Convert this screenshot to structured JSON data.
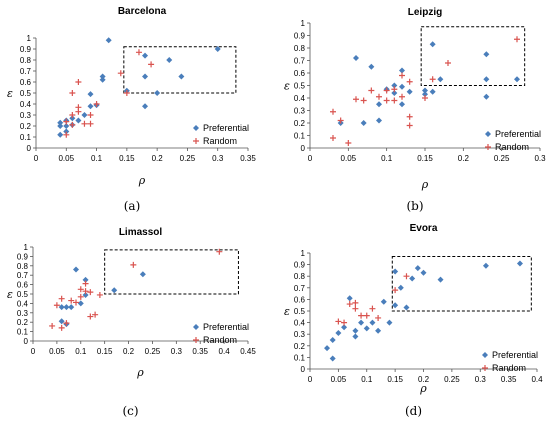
{
  "chart_data": [
    {
      "type": "scatter",
      "title": "Barcelona",
      "xlabel": "ρ",
      "ylabel": "ε",
      "caption": "(a)",
      "xlim": [
        0,
        0.35
      ],
      "xticks": [
        "0",
        "0.05",
        "0.1",
        "0.15",
        "0.2",
        "0.25",
        "0.3",
        "0.35"
      ],
      "ylim": [
        0,
        1
      ],
      "yticks": [
        "0",
        "0.1",
        "0.2",
        "0.3",
        "0.4",
        "0.5",
        "0.6",
        "0.7",
        "0.8",
        "0.9",
        "1"
      ],
      "box": [
        0.145,
        0.5,
        0.33,
        0.92
      ],
      "legend_position": "bottom-right",
      "colors": {
        "Preferential": "#4a7ebb",
        "Random": "#d9534f"
      },
      "series": [
        {
          "name": "Preferential",
          "marker": "diamond",
          "points": [
            [
              0.04,
              0.12
            ],
            [
              0.04,
              0.2
            ],
            [
              0.04,
              0.23
            ],
            [
              0.05,
              0.15
            ],
            [
              0.05,
              0.2
            ],
            [
              0.05,
              0.25
            ],
            [
              0.06,
              0.21
            ],
            [
              0.06,
              0.27
            ],
            [
              0.07,
              0.25
            ],
            [
              0.08,
              0.3
            ],
            [
              0.09,
              0.38
            ],
            [
              0.09,
              0.49
            ],
            [
              0.1,
              0.39
            ],
            [
              0.11,
              0.62
            ],
            [
              0.11,
              0.65
            ],
            [
              0.12,
              0.98
            ],
            [
              0.15,
              0.52
            ],
            [
              0.18,
              0.38
            ],
            [
              0.18,
              0.65
            ],
            [
              0.18,
              0.84
            ],
            [
              0.2,
              0.5
            ],
            [
              0.22,
              0.8
            ],
            [
              0.24,
              0.65
            ],
            [
              0.3,
              0.9
            ]
          ]
        },
        {
          "name": "Random",
          "marker": "plus",
          "points": [
            [
              0.05,
              0.12
            ],
            [
              0.05,
              0.24
            ],
            [
              0.06,
              0.21
            ],
            [
              0.06,
              0.3
            ],
            [
              0.06,
              0.5
            ],
            [
              0.07,
              0.33
            ],
            [
              0.07,
              0.37
            ],
            [
              0.07,
              0.6
            ],
            [
              0.08,
              0.22
            ],
            [
              0.09,
              0.22
            ],
            [
              0.09,
              0.3
            ],
            [
              0.1,
              0.4
            ],
            [
              0.14,
              0.68
            ],
            [
              0.15,
              0.5
            ],
            [
              0.17,
              0.87
            ],
            [
              0.19,
              0.76
            ]
          ]
        }
      ]
    },
    {
      "type": "scatter",
      "title": "Leipzig",
      "xlabel": "ρ",
      "ylabel": "ε",
      "caption": "(b)",
      "xlim": [
        0,
        0.3
      ],
      "xticks": [
        "0",
        "0.05",
        "0.1",
        "0.15",
        "0.2",
        "0.25",
        "0.3"
      ],
      "ylim": [
        0,
        1
      ],
      "yticks": [
        "0",
        "0.1",
        "0.2",
        "0.3",
        "0.4",
        "0.5",
        "0.6",
        "0.7",
        "0.8",
        "0.9",
        "1"
      ],
      "box": [
        0.145,
        0.5,
        0.28,
        0.97
      ],
      "legend_position": "bottom-right",
      "colors": {
        "Preferential": "#4a7ebb",
        "Random": "#d9534f"
      },
      "series": [
        {
          "name": "Preferential",
          "marker": "diamond",
          "points": [
            [
              0.04,
              0.2
            ],
            [
              0.06,
              0.72
            ],
            [
              0.07,
              0.2
            ],
            [
              0.08,
              0.65
            ],
            [
              0.09,
              0.22
            ],
            [
              0.09,
              0.35
            ],
            [
              0.1,
              0.47
            ],
            [
              0.11,
              0.44
            ],
            [
              0.11,
              0.5
            ],
            [
              0.12,
              0.35
            ],
            [
              0.12,
              0.49
            ],
            [
              0.12,
              0.62
            ],
            [
              0.13,
              0.45
            ],
            [
              0.15,
              0.43
            ],
            [
              0.15,
              0.46
            ],
            [
              0.16,
              0.83
            ],
            [
              0.16,
              0.45
            ],
            [
              0.17,
              0.55
            ],
            [
              0.23,
              0.41
            ],
            [
              0.23,
              0.55
            ],
            [
              0.23,
              0.75
            ],
            [
              0.27,
              0.55
            ]
          ]
        },
        {
          "name": "Random",
          "marker": "plus",
          "points": [
            [
              0.03,
              0.08
            ],
            [
              0.03,
              0.29
            ],
            [
              0.04,
              0.22
            ],
            [
              0.05,
              0.04
            ],
            [
              0.06,
              0.39
            ],
            [
              0.07,
              0.38
            ],
            [
              0.08,
              0.46
            ],
            [
              0.09,
              0.41
            ],
            [
              0.1,
              0.38
            ],
            [
              0.1,
              0.46
            ],
            [
              0.11,
              0.38
            ],
            [
              0.11,
              0.47
            ],
            [
              0.12,
              0.41
            ],
            [
              0.12,
              0.58
            ],
            [
              0.13,
              0.18
            ],
            [
              0.13,
              0.25
            ],
            [
              0.13,
              0.53
            ],
            [
              0.15,
              0.4
            ],
            [
              0.16,
              0.55
            ],
            [
              0.18,
              0.68
            ],
            [
              0.27,
              0.87
            ]
          ]
        }
      ]
    },
    {
      "type": "scatter",
      "title": "Limassol",
      "xlabel": "ρ",
      "ylabel": "ε",
      "caption": "(c)",
      "xlim": [
        0,
        0.45
      ],
      "xticks": [
        "0",
        "0.05",
        "0.1",
        "0.15",
        "0.2",
        "0.25",
        "0.3",
        "0.35",
        "0.4",
        "0.45"
      ],
      "ylim": [
        0,
        1
      ],
      "yticks": [
        "0",
        "0.1",
        "0.2",
        "0.3",
        "0.4",
        "0.5",
        "0.6",
        "0.7",
        "0.8",
        "0.9",
        "1"
      ],
      "box": [
        0.15,
        0.5,
        0.43,
        0.97
      ],
      "legend_position": "bottom-right",
      "colors": {
        "Preferential": "#4a7ebb",
        "Random": "#d9534f"
      },
      "series": [
        {
          "name": "Preferential",
          "marker": "diamond",
          "points": [
            [
              0.06,
              0.21
            ],
            [
              0.06,
              0.36
            ],
            [
              0.07,
              0.36
            ],
            [
              0.07,
              0.18
            ],
            [
              0.08,
              0.36
            ],
            [
              0.09,
              0.76
            ],
            [
              0.1,
              0.4
            ],
            [
              0.11,
              0.49
            ],
            [
              0.11,
              0.65
            ],
            [
              0.17,
              0.54
            ],
            [
              0.23,
              0.71
            ]
          ]
        },
        {
          "name": "Random",
          "marker": "plus",
          "points": [
            [
              0.04,
              0.16
            ],
            [
              0.05,
              0.38
            ],
            [
              0.06,
              0.45
            ],
            [
              0.06,
              0.14
            ],
            [
              0.07,
              0.19
            ],
            [
              0.08,
              0.43
            ],
            [
              0.09,
              0.41
            ],
            [
              0.1,
              0.47
            ],
            [
              0.1,
              0.55
            ],
            [
              0.11,
              0.61
            ],
            [
              0.11,
              0.53
            ],
            [
              0.12,
              0.26
            ],
            [
              0.12,
              0.52
            ],
            [
              0.13,
              0.28
            ],
            [
              0.14,
              0.49
            ],
            [
              0.21,
              0.81
            ],
            [
              0.39,
              0.95
            ]
          ]
        }
      ]
    },
    {
      "type": "scatter",
      "title": "Evora",
      "xlabel": "ρ",
      "ylabel": "ε",
      "caption": "(d)",
      "xlim": [
        0,
        0.4
      ],
      "xticks": [
        "0",
        "0.05",
        "0.1",
        "0.15",
        "0.2",
        "0.25",
        "0.3",
        "0.35",
        "0.4"
      ],
      "ylim": [
        0,
        1
      ],
      "yticks": [
        "0",
        "0.1",
        "0.2",
        "0.3",
        "0.4",
        "0.5",
        "0.6",
        "0.7",
        "0.8",
        "0.9",
        "1"
      ],
      "box": [
        0.145,
        0.5,
        0.39,
        0.97
      ],
      "legend_position": "bottom-right",
      "colors": {
        "Preferential": "#4a7ebb",
        "Random": "#d9534f"
      },
      "series": [
        {
          "name": "Preferential",
          "marker": "diamond",
          "points": [
            [
              0.03,
              0.18
            ],
            [
              0.04,
              0.09
            ],
            [
              0.04,
              0.25
            ],
            [
              0.05,
              0.31
            ],
            [
              0.06,
              0.36
            ],
            [
              0.07,
              0.61
            ],
            [
              0.08,
              0.28
            ],
            [
              0.08,
              0.33
            ],
            [
              0.09,
              0.4
            ],
            [
              0.1,
              0.35
            ],
            [
              0.11,
              0.4
            ],
            [
              0.12,
              0.33
            ],
            [
              0.13,
              0.58
            ],
            [
              0.14,
              0.4
            ],
            [
              0.15,
              0.55
            ],
            [
              0.15,
              0.84
            ],
            [
              0.16,
              0.7
            ],
            [
              0.17,
              0.53
            ],
            [
              0.18,
              0.78
            ],
            [
              0.19,
              0.87
            ],
            [
              0.2,
              0.83
            ],
            [
              0.23,
              0.77
            ],
            [
              0.31,
              0.89
            ],
            [
              0.37,
              0.91
            ]
          ]
        },
        {
          "name": "Random",
          "marker": "plus",
          "points": [
            [
              0.05,
              0.41
            ],
            [
              0.06,
              0.4
            ],
            [
              0.07,
              0.56
            ],
            [
              0.08,
              0.52
            ],
            [
              0.08,
              0.57
            ],
            [
              0.09,
              0.46
            ],
            [
              0.1,
              0.46
            ],
            [
              0.11,
              0.52
            ],
            [
              0.12,
              0.44
            ],
            [
              0.15,
              0.68
            ],
            [
              0.17,
              0.8
            ]
          ]
        }
      ]
    }
  ]
}
